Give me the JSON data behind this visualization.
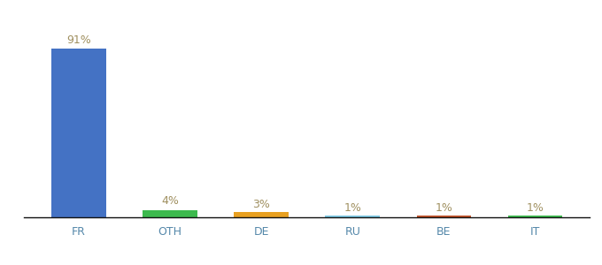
{
  "categories": [
    "FR",
    "OTH",
    "DE",
    "RU",
    "BE",
    "IT"
  ],
  "values": [
    91,
    4,
    3,
    1,
    1,
    1
  ],
  "labels": [
    "91%",
    "4%",
    "3%",
    "1%",
    "1%",
    "1%"
  ],
  "bar_colors": [
    "#4472c4",
    "#3dba4e",
    "#e8a020",
    "#7ec8e3",
    "#c0522a",
    "#3dba4e"
  ],
  "background_color": "#ffffff",
  "ylim": [
    0,
    100
  ],
  "label_fontsize": 9,
  "tick_fontsize": 9,
  "label_color": "#a09060",
  "tick_color": "#5588aa"
}
